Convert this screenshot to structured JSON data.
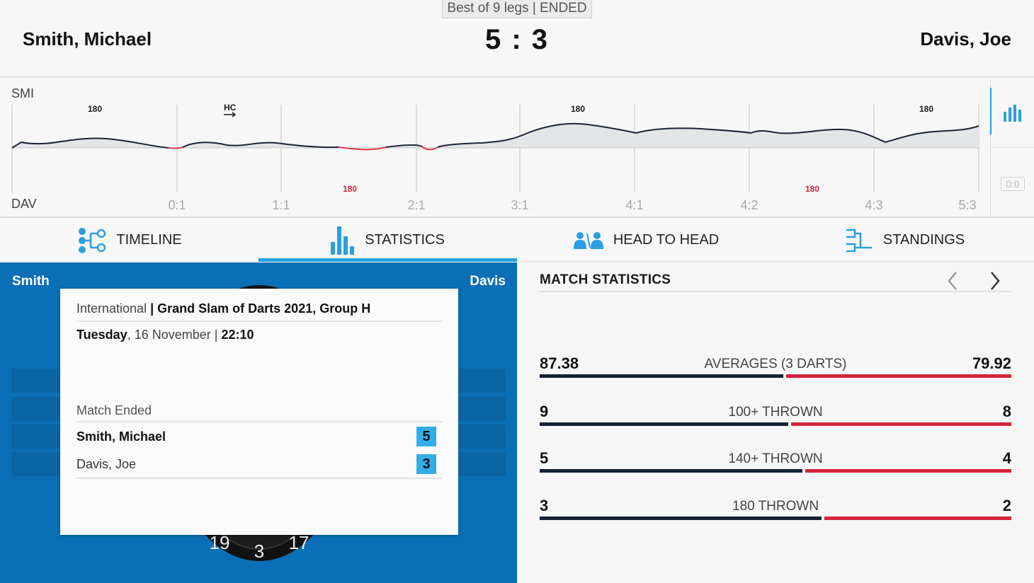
{
  "header": {
    "format": "Best of 9 legs | ENDED",
    "player_home": "Smith, Michael",
    "player_away": "Davis, Joe",
    "score": "5 : 3"
  },
  "graph": {
    "home_abbr": "SMI",
    "away_abbr": "DAV",
    "home_marks": [
      "180",
      "HC",
      "180",
      "180"
    ],
    "away_marks": [
      "180",
      "180"
    ],
    "leg_labels": [
      "0:1",
      "1:1",
      "2:1",
      "3:1",
      "4:1",
      "4:2",
      "4:3",
      "5:3"
    ],
    "zoom": "0:0",
    "colors": {
      "line": "#1b2436",
      "lose": "#e23b52",
      "fill": "#e4e5e7",
      "away_mark": "#d4253b"
    }
  },
  "tabs": [
    {
      "label": "TIMELINE",
      "icon": "timeline-icon"
    },
    {
      "label": "STATISTICS",
      "icon": "statistics-icon"
    },
    {
      "label": "HEAD TO HEAD",
      "icon": "head-to-head-icon"
    },
    {
      "label": "STANDINGS",
      "icon": "standings-icon"
    }
  ],
  "board": {
    "left_name": "Smith",
    "right_name": "Davis",
    "board_numbers": [
      "19",
      "3",
      "17"
    ]
  },
  "info_card": {
    "category": "International",
    "separator": " | ",
    "tournament": "Grand Slam of Darts 2021, Group H",
    "day": "Tuesday",
    "date": ", 16 November | ",
    "time": "22:10",
    "status": "Match Ended",
    "home_name": "Smith, Michael",
    "home_score": "5",
    "away_name": "Davis, Joe",
    "away_score": "3"
  },
  "match_statistics": {
    "title": "MATCH STATISTICS",
    "rows": [
      {
        "label": "AVERAGES (3 DARTS)",
        "home": "87.38",
        "away": "79.92",
        "home_share": 0.52
      },
      {
        "label": "100+ THROWN",
        "home": "9",
        "away": "8",
        "home_share": 0.53
      },
      {
        "label": "140+ THROWN",
        "home": "5",
        "away": "4",
        "home_share": 0.56
      },
      {
        "label": "180 THROWN",
        "home": "3",
        "away": "2",
        "home_share": 0.6
      }
    ]
  }
}
